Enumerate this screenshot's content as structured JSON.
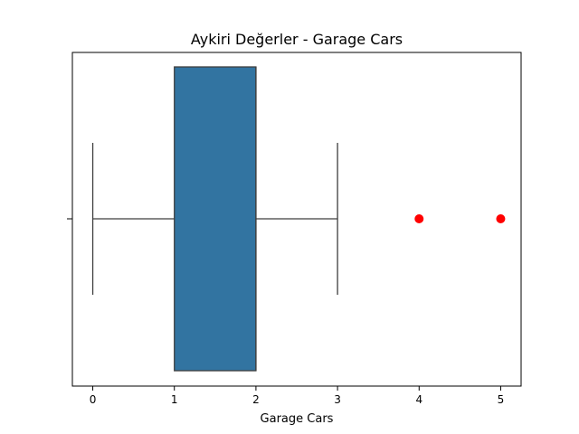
{
  "chart_data": {
    "type": "box",
    "orientation": "horizontal",
    "title": "Aykiri Değerler - Garage Cars",
    "xlabel": "Garage Cars",
    "ylabel": "",
    "xlim": [
      -0.25,
      5.25
    ],
    "xticks": [
      0,
      1,
      2,
      3,
      4,
      5
    ],
    "xtick_labels": [
      "0",
      "1",
      "2",
      "3",
      "4",
      "5"
    ],
    "grid": false,
    "box": {
      "whisker_low": 0,
      "q1": 1,
      "median": 2,
      "q3": 2,
      "whisker_high": 3
    },
    "outliers": [
      4,
      5
    ],
    "colors": {
      "box_fill": "#3274a1",
      "line": "#3f3f3f",
      "outlier": "#ff0000",
      "axes": "#000000"
    }
  }
}
